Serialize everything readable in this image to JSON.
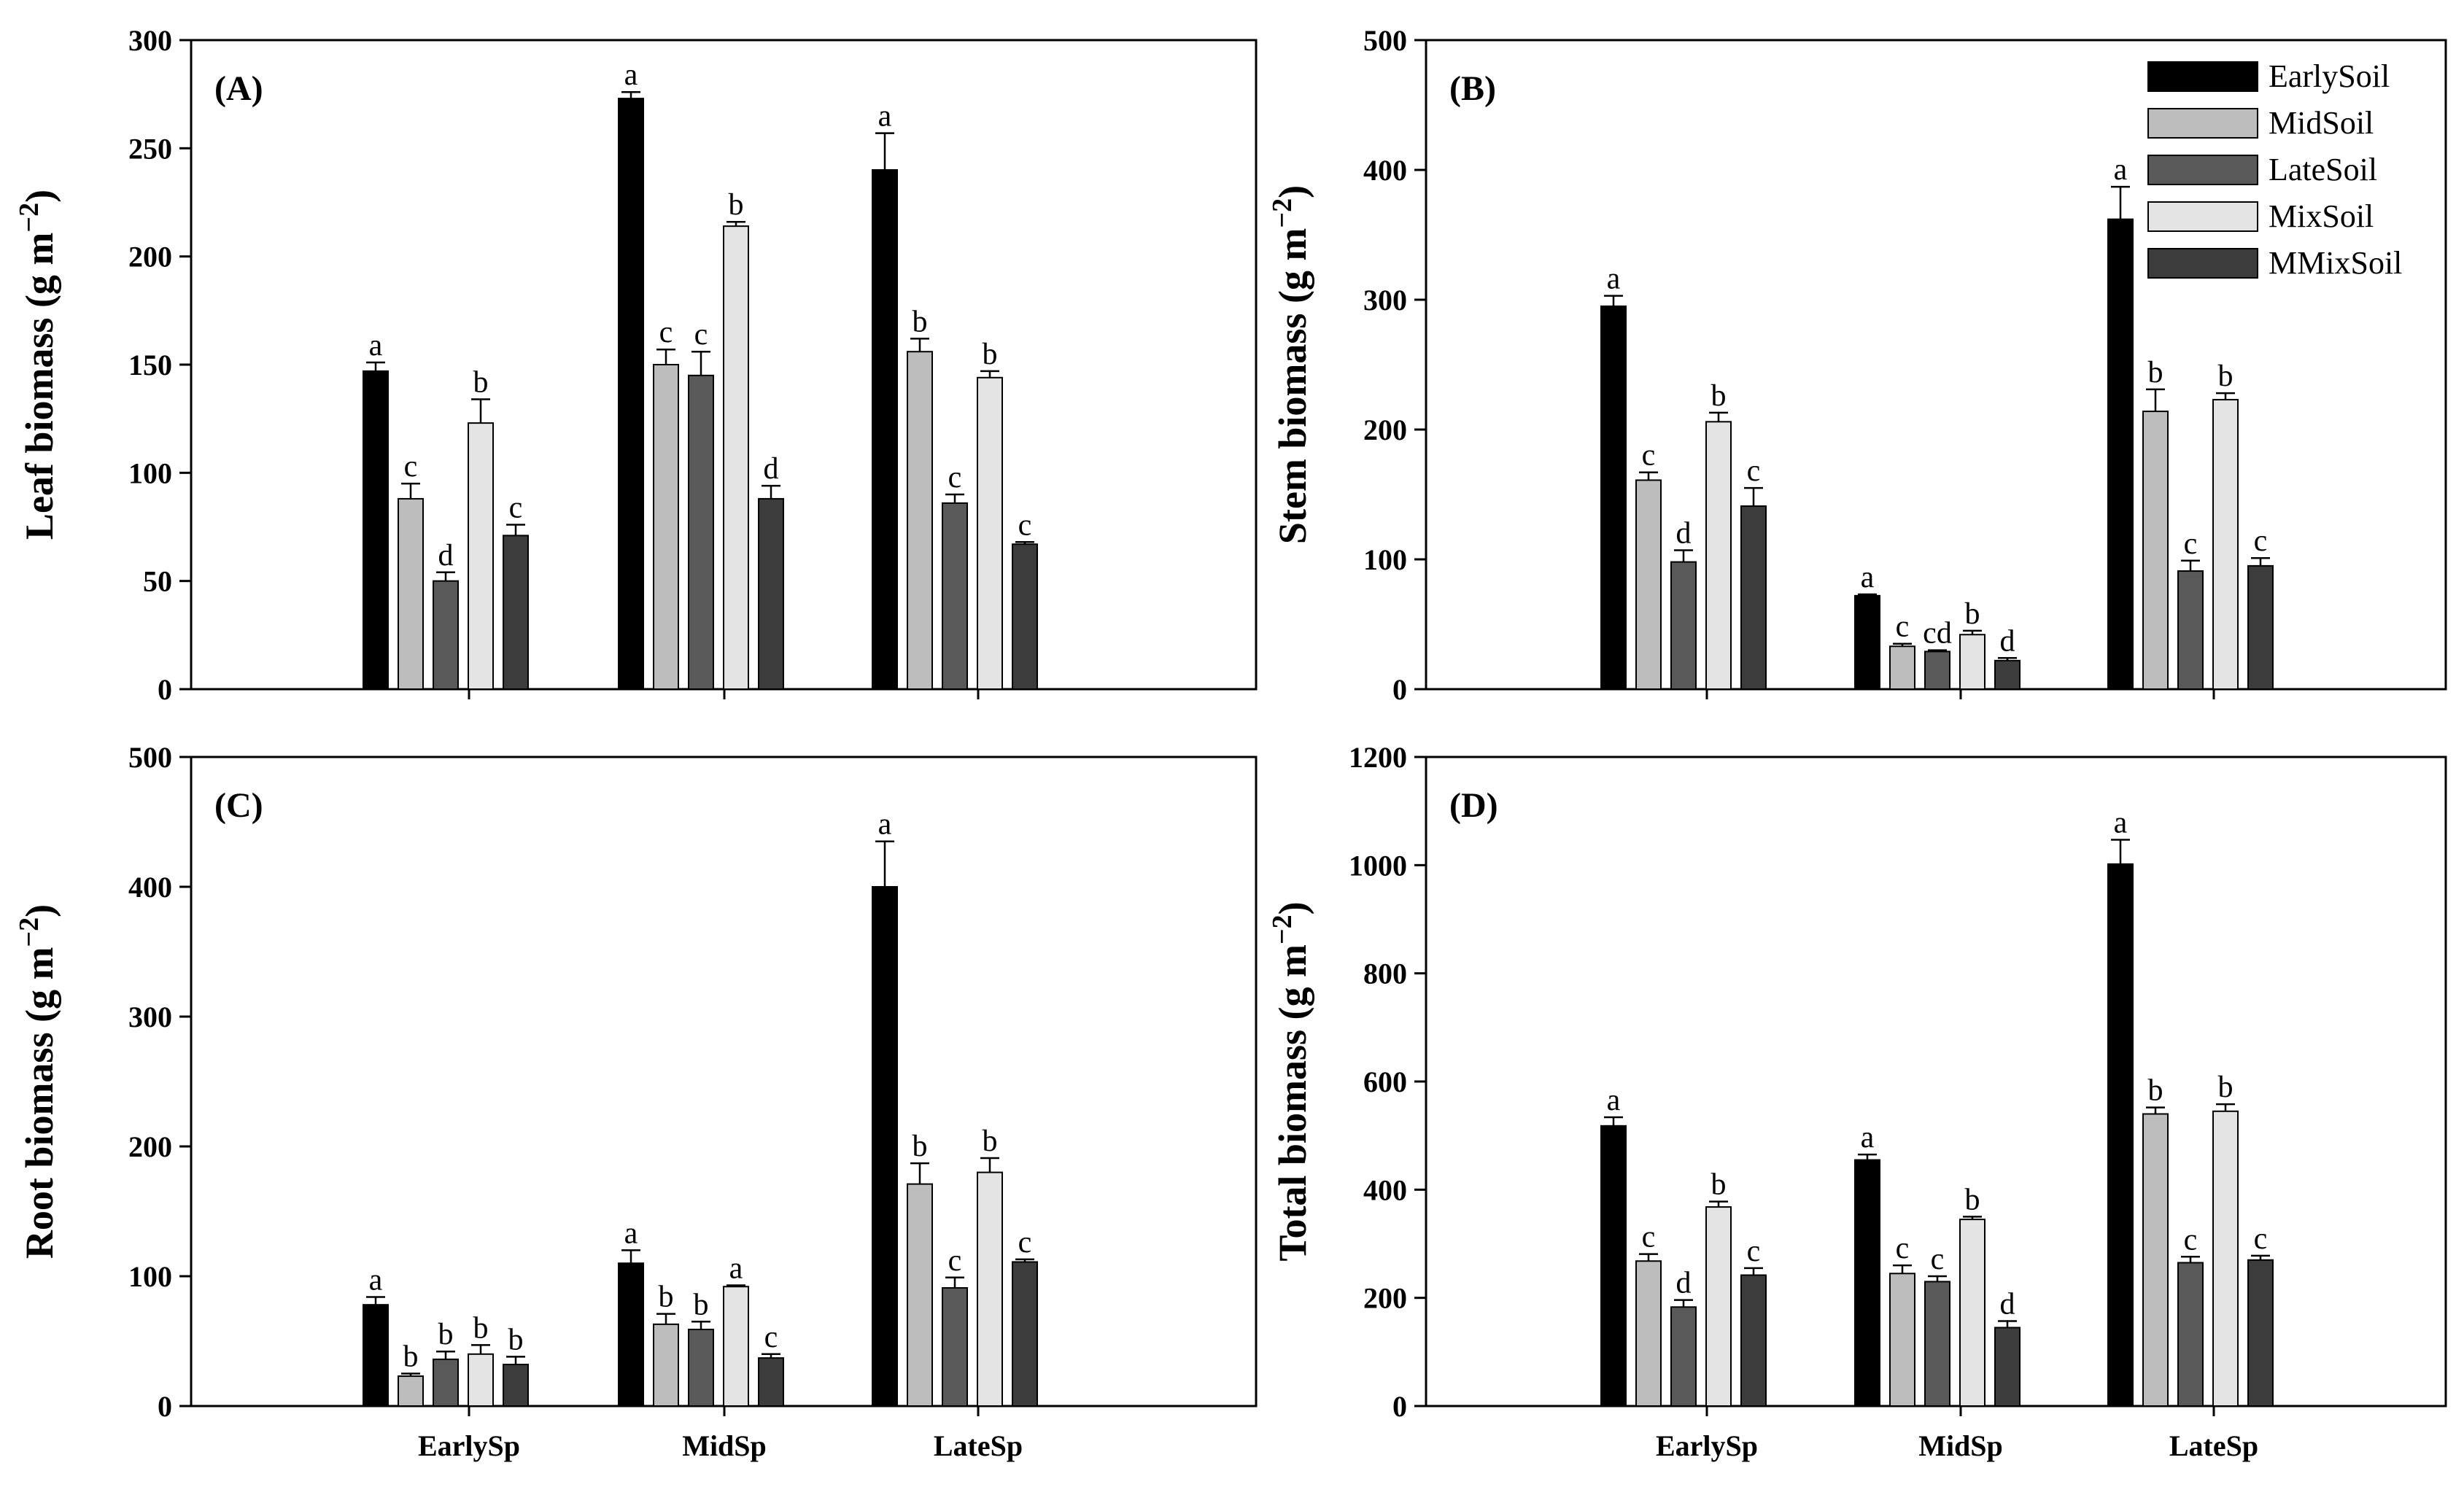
{
  "chart_data": {
    "categories": [
      "EarlySp",
      "MidSp",
      "LateSp"
    ],
    "legend": [
      {
        "name": "EarlySoil",
        "color": "#000000"
      },
      {
        "name": "MidSoil",
        "color": "#bdbdbd"
      },
      {
        "name": "LateSoil",
        "color": "#595959"
      },
      {
        "name": "MixSoil",
        "color": "#e4e4e4"
      },
      {
        "name": "MMixSoil",
        "color": "#3c3c3c"
      }
    ],
    "panels": [
      {
        "label": "(A)",
        "type": "bar",
        "ylabel": "Leaf biomass (g m",
        "ylabel_exp": "−2",
        "ylabel_close": ")",
        "ylim": [
          0,
          300
        ],
        "yticks": [
          0,
          50,
          100,
          150,
          200,
          250,
          300
        ],
        "series": [
          {
            "name": "EarlySoil",
            "values": [
              147,
              273,
              240
            ],
            "errors": [
              4,
              3,
              17
            ],
            "letters": [
              "a",
              "a",
              "a"
            ]
          },
          {
            "name": "MidSoil",
            "values": [
              88,
              150,
              156
            ],
            "errors": [
              7,
              7,
              6
            ],
            "letters": [
              "c",
              "c",
              "b"
            ]
          },
          {
            "name": "LateSoil",
            "values": [
              50,
              145,
              86
            ],
            "errors": [
              4,
              11,
              4
            ],
            "letters": [
              "d",
              "c",
              "c"
            ]
          },
          {
            "name": "MixSoil",
            "values": [
              123,
              214,
              144
            ],
            "errors": [
              11,
              2,
              3
            ],
            "letters": [
              "b",
              "b",
              "b"
            ]
          },
          {
            "name": "MMixSoil",
            "values": [
              71,
              88,
              67
            ],
            "errors": [
              5,
              6,
              1
            ],
            "letters": [
              "c",
              "d",
              "c"
            ]
          }
        ]
      },
      {
        "label": "(B)",
        "type": "bar",
        "ylabel": "Stem biomass (g m",
        "ylabel_exp": "−2",
        "ylabel_close": ")",
        "ylim": [
          0,
          500
        ],
        "yticks": [
          0,
          100,
          200,
          300,
          400,
          500
        ],
        "series": [
          {
            "name": "EarlySoil",
            "values": [
              295,
              72,
              362
            ],
            "errors": [
              8,
              1,
              25
            ],
            "letters": [
              "a",
              "a",
              "a"
            ]
          },
          {
            "name": "MidSoil",
            "values": [
              161,
              33,
              214
            ],
            "errors": [
              6,
              2,
              17
            ],
            "letters": [
              "c",
              "c",
              "b"
            ]
          },
          {
            "name": "LateSoil",
            "values": [
              98,
              29,
              91
            ],
            "errors": [
              9,
              1,
              8
            ],
            "letters": [
              "d",
              "cd",
              "c"
            ]
          },
          {
            "name": "MixSoil",
            "values": [
              206,
              42,
              223
            ],
            "errors": [
              7,
              3,
              5
            ],
            "letters": [
              "b",
              "b",
              "b"
            ]
          },
          {
            "name": "MMixSoil",
            "values": [
              141,
              22,
              95
            ],
            "errors": [
              14,
              2,
              6
            ],
            "letters": [
              "c",
              "d",
              "c"
            ]
          }
        ]
      },
      {
        "label": "(C)",
        "type": "bar",
        "ylabel": "Root biomass (g m",
        "ylabel_exp": "−2",
        "ylabel_close": ")",
        "ylim": [
          0,
          500
        ],
        "yticks": [
          0,
          100,
          200,
          300,
          400,
          500
        ],
        "series": [
          {
            "name": "EarlySoil",
            "values": [
              78,
              110,
              400
            ],
            "errors": [
              6,
              10,
              35
            ],
            "letters": [
              "a",
              "a",
              "a"
            ]
          },
          {
            "name": "MidSoil",
            "values": [
              23,
              63,
              171
            ],
            "errors": [
              2,
              8,
              16
            ],
            "letters": [
              "b",
              "b",
              "b"
            ]
          },
          {
            "name": "LateSoil",
            "values": [
              36,
              59,
              91
            ],
            "errors": [
              6,
              6,
              8
            ],
            "letters": [
              "b",
              "b",
              "c"
            ]
          },
          {
            "name": "MixSoil",
            "values": [
              40,
              92,
              180
            ],
            "errors": [
              7,
              1,
              11
            ],
            "letters": [
              "b",
              "a",
              "b"
            ]
          },
          {
            "name": "MMixSoil",
            "values": [
              32,
              37,
              111
            ],
            "errors": [
              6,
              3,
              2
            ],
            "letters": [
              "b",
              "c",
              "c"
            ]
          }
        ]
      },
      {
        "label": "(D)",
        "type": "bar",
        "ylabel": "Total biomass (g m",
        "ylabel_exp": "−2",
        "ylabel_close": ")",
        "ylim": [
          0,
          1200
        ],
        "yticks": [
          0,
          200,
          400,
          600,
          800,
          1000,
          1200
        ],
        "series": [
          {
            "name": "EarlySoil",
            "values": [
              518,
              455,
              1002
            ],
            "errors": [
              16,
              10,
              45
            ],
            "letters": [
              "a",
              "a",
              "a"
            ]
          },
          {
            "name": "MidSoil",
            "values": [
              268,
              245,
              540
            ],
            "errors": [
              13,
              15,
              12
            ],
            "letters": [
              "c",
              "c",
              "b"
            ]
          },
          {
            "name": "LateSoil",
            "values": [
              183,
              230,
              265
            ],
            "errors": [
              13,
              10,
              11
            ],
            "letters": [
              "d",
              "c",
              "c"
            ]
          },
          {
            "name": "MixSoil",
            "values": [
              368,
              345,
              545
            ],
            "errors": [
              10,
              5,
              13
            ],
            "letters": [
              "b",
              "b",
              "b"
            ]
          },
          {
            "name": "MMixSoil",
            "values": [
              242,
              145,
              270
            ],
            "errors": [
              13,
              12,
              8
            ],
            "letters": [
              "c",
              "d",
              "c"
            ]
          }
        ]
      }
    ]
  }
}
